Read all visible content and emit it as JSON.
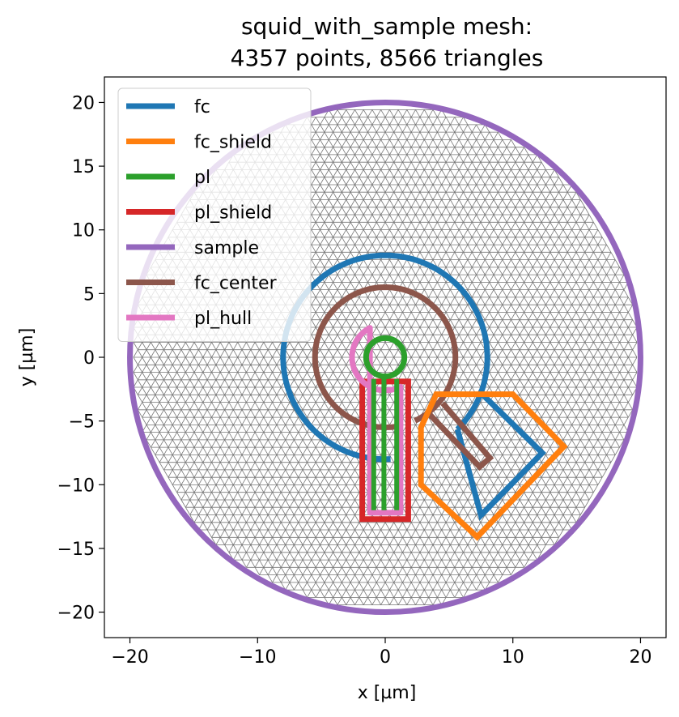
{
  "chart_data": {
    "type": "line",
    "title_lines": [
      "squid_with_sample mesh:",
      "4357 points, 8566 triangles"
    ],
    "xlabel": "x [µm]",
    "ylabel": "y [µm]",
    "xlim": [
      -22,
      22
    ],
    "ylim": [
      -22,
      22
    ],
    "xticks": [
      -20,
      -10,
      0,
      10,
      20
    ],
    "yticks": [
      -20,
      -15,
      -10,
      -5,
      0,
      5,
      10,
      15,
      20
    ],
    "xtick_labels": [
      "−20",
      "−10",
      "0",
      "10",
      "20"
    ],
    "ytick_labels": [
      "−20",
      "−15",
      "−10",
      "−5",
      "0",
      "5",
      "10",
      "15",
      "20"
    ],
    "legend_position": "upper-left",
    "mesh": {
      "color": "#777777",
      "points": 4357,
      "triangles": 8566,
      "radius": 20
    },
    "series": [
      {
        "name": "fc",
        "color": "#1f77b4",
        "kind": "arc",
        "center": [
          0,
          0
        ],
        "radius": 8,
        "start_deg": -45,
        "end_deg": 273,
        "tail_points": [
          [
            5.66,
            -5.66
          ],
          [
            7.5,
            -12.4
          ],
          [
            12.3,
            -7.5
          ],
          [
            7.6,
            -2.9
          ]
        ],
        "extra_points": [
          [
            0,
            -8
          ],
          [
            -1.2,
            -8
          ]
        ]
      },
      {
        "name": "fc_shield",
        "color": "#ff7f0e",
        "kind": "polygon",
        "points": [
          [
            4,
            -2.9
          ],
          [
            10,
            -2.9
          ],
          [
            14,
            -7
          ],
          [
            7.2,
            -14.1
          ],
          [
            2.8,
            -10
          ],
          [
            2.8,
            -5.5
          ]
        ]
      },
      {
        "name": "pl",
        "color": "#2ca02c",
        "kind": "mixed",
        "circle": {
          "center": [
            0,
            0
          ],
          "radius": 1.5
        },
        "lines": [
          [
            [
              -0.9,
              -1.7
            ],
            [
              -0.9,
              -12
            ]
          ],
          [
            [
              0.9,
              -1.7
            ],
            [
              0.9,
              -12
            ]
          ],
          [
            [
              -0.1,
              -1.5
            ],
            [
              -0.1,
              -12
            ]
          ]
        ]
      },
      {
        "name": "pl_shield",
        "color": "#d62728",
        "kind": "polygon",
        "points": [
          [
            -1.8,
            -1.9
          ],
          [
            1.8,
            -1.9
          ],
          [
            1.8,
            -12.7
          ],
          [
            -1.8,
            -12.7
          ]
        ]
      },
      {
        "name": "sample",
        "color": "#9467bd",
        "kind": "circle",
        "center": [
          0,
          0
        ],
        "radius": 20
      },
      {
        "name": "fc_center",
        "color": "#8c564b",
        "kind": "arc",
        "center": [
          0,
          0
        ],
        "radius": 5.5,
        "start_deg": -65,
        "end_deg": 278,
        "tail_points": [
          [
            3.3,
            -4.3
          ],
          [
            7.4,
            -8.6
          ],
          [
            8.2,
            -7.9
          ],
          [
            4.5,
            -3.6
          ]
        ]
      },
      {
        "name": "pl_hull",
        "color": "#e377c2",
        "kind": "hull",
        "circle": {
          "center": [
            0,
            0
          ],
          "radius": 2.6
        },
        "rect": [
          [
            -1.2,
            -1.8
          ],
          [
            1.2,
            -12.2
          ]
        ]
      }
    ]
  }
}
